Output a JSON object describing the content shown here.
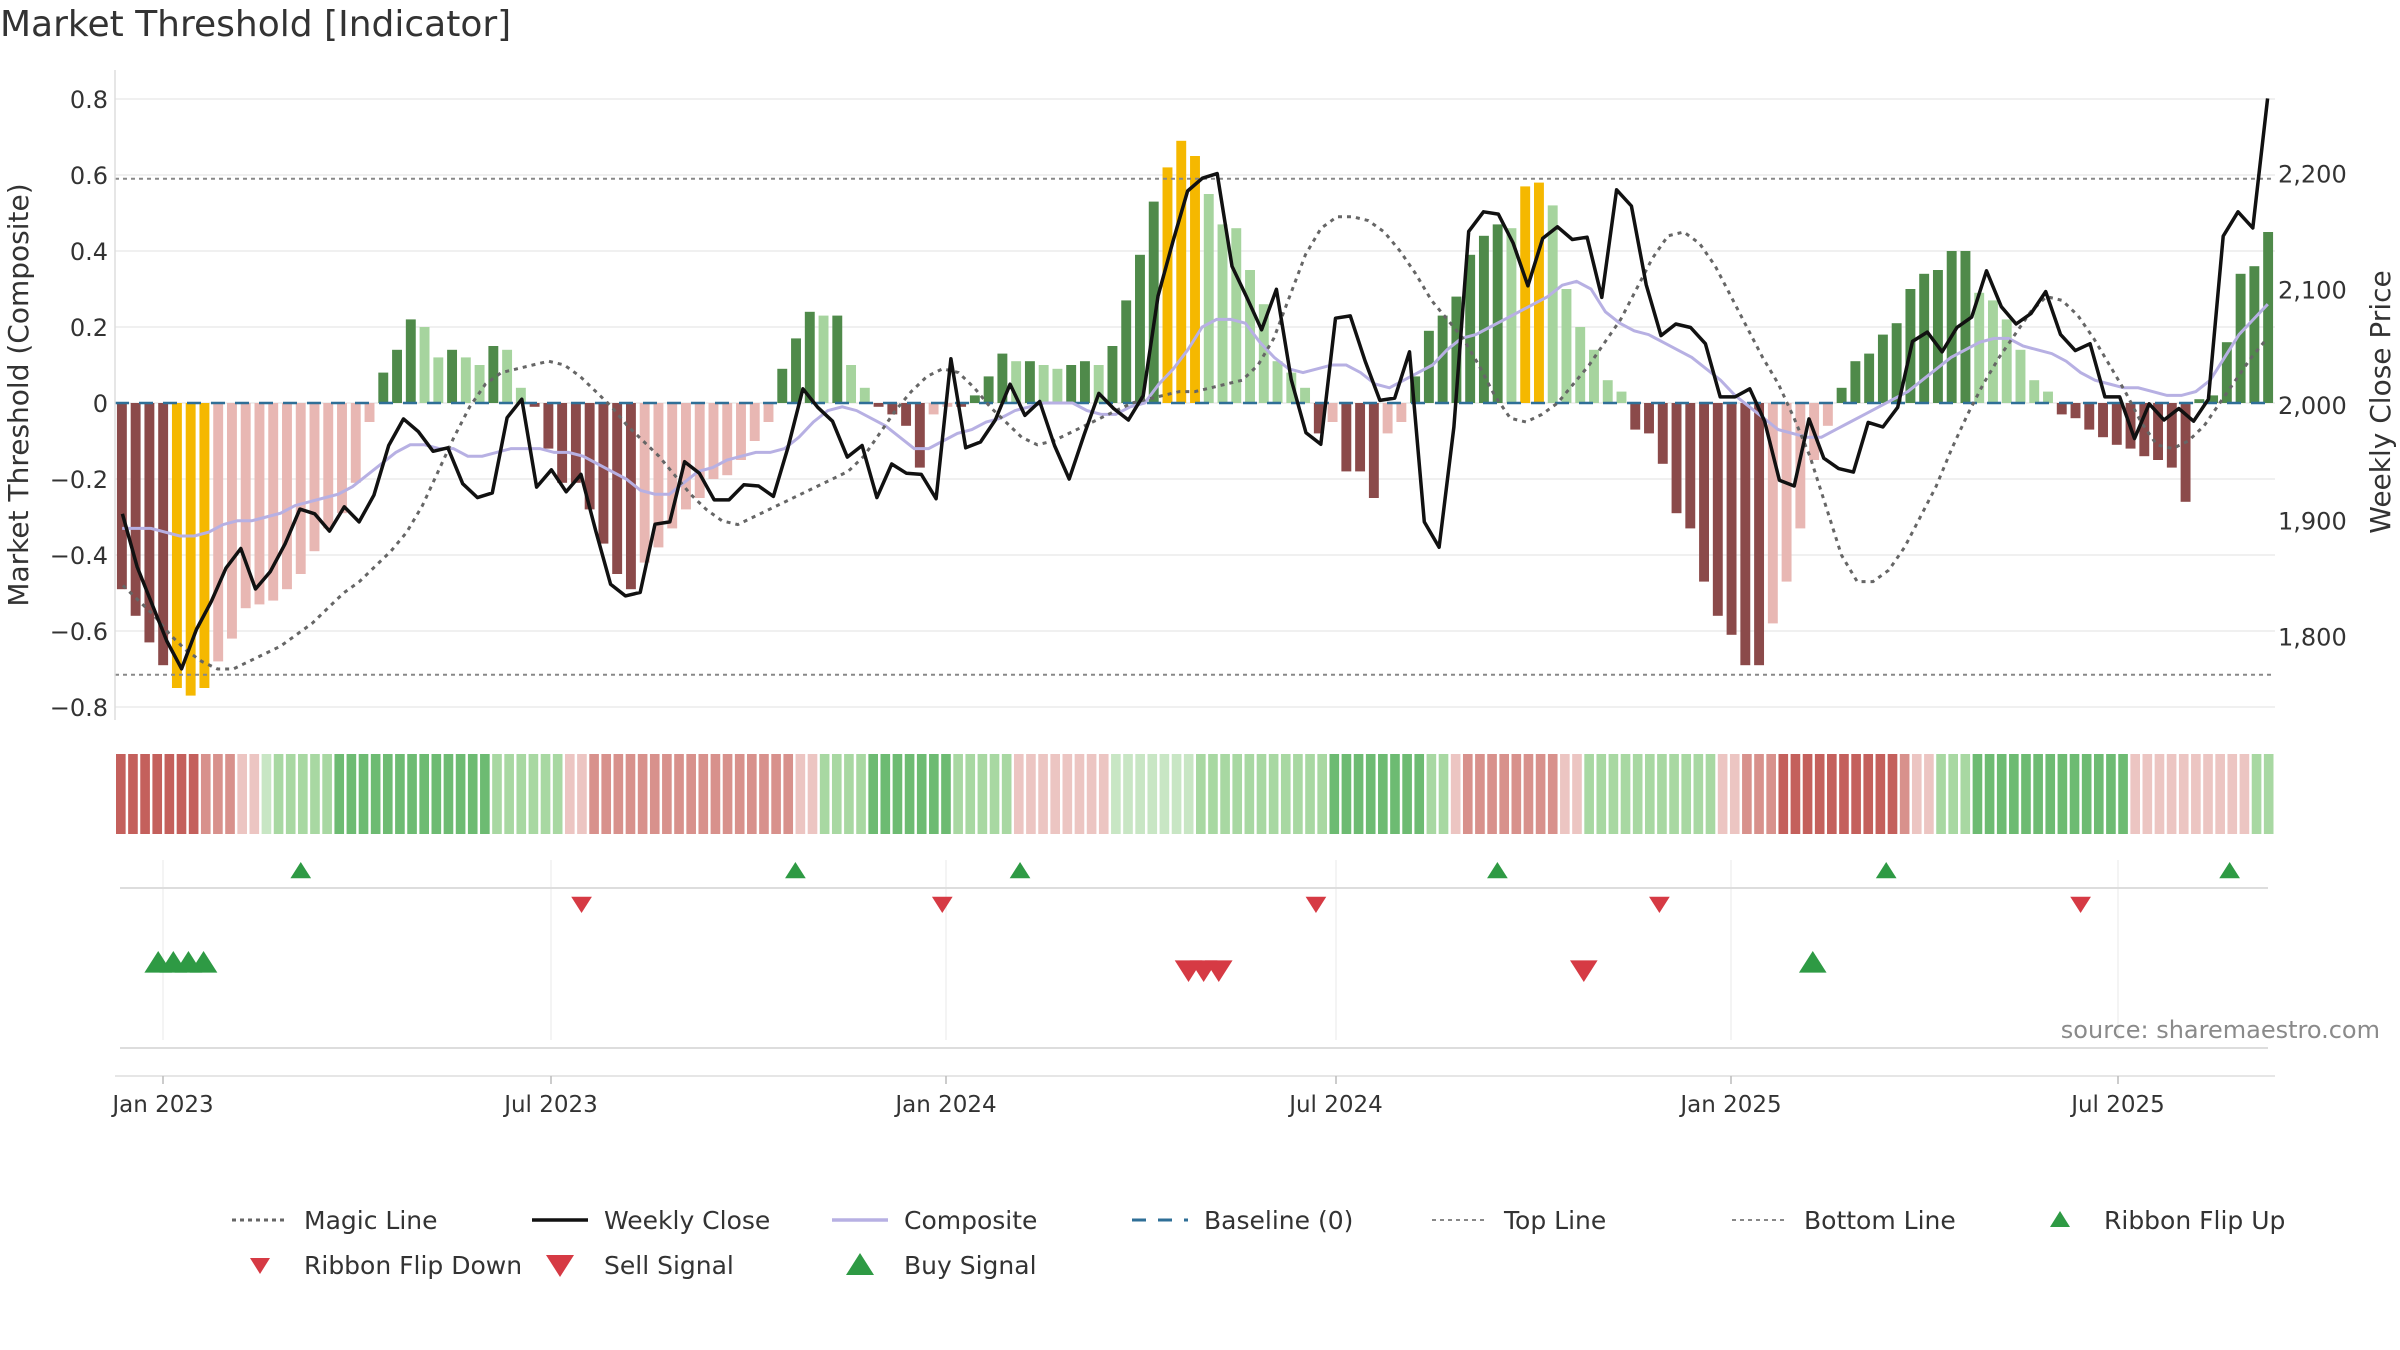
{
  "title": "Market Threshold [Indicator]",
  "source": "source: sharemaestro.com",
  "colors": {
    "deep_red": "#8b4a4a",
    "light_red": "#e8b7b3",
    "gold": "#f5b800",
    "deep_green": "#4f8a4a",
    "light_green": "#a6d49e",
    "close": "#111111",
    "composite": "#b7b0e3",
    "baseline": "#2f6f97",
    "magic": "#666666",
    "sell": "#d63a44",
    "buy": "#2e9a44"
  },
  "chart_data": {
    "type": "bar",
    "title": "Market Threshold [Indicator]",
    "ylabel": "Market Threshold (Composite)",
    "y2label": "Weekly Close Price",
    "ylim": [
      -0.84,
      0.8
    ],
    "y2lim": [
      1735,
      2265
    ],
    "yticks": [
      "0.8",
      "0.6",
      "0.4",
      "0.2",
      "0",
      "−0.2",
      "−0.4",
      "−0.6",
      "−0.8"
    ],
    "y2ticks": [
      "2,200",
      "2,100",
      "2,000",
      "1,900",
      "1,800"
    ],
    "xticks": [
      "Jan 2023",
      "Jul 2023",
      "Jan 2024",
      "Jul 2024",
      "Jan 2025",
      "Jul 2025"
    ],
    "top_line": 0.59,
    "bottom_line": -0.715,
    "composite_bars": [
      -0.49,
      -0.56,
      -0.63,
      -0.69,
      -0.75,
      -0.77,
      -0.75,
      -0.68,
      -0.62,
      -0.54,
      -0.53,
      -0.52,
      -0.49,
      -0.45,
      -0.39,
      -0.33,
      -0.29,
      -0.21,
      -0.05,
      0.08,
      0.14,
      0.22,
      0.2,
      0.12,
      0.14,
      0.12,
      0.1,
      0.15,
      0.14,
      0.04,
      -0.01,
      -0.12,
      -0.21,
      -0.21,
      -0.28,
      -0.37,
      -0.45,
      -0.49,
      -0.42,
      -0.38,
      -0.33,
      -0.28,
      -0.25,
      -0.2,
      -0.19,
      -0.15,
      -0.1,
      -0.05,
      0.09,
      0.17,
      0.24,
      0.23,
      0.23,
      0.1,
      0.04,
      -0.01,
      -0.03,
      -0.06,
      -0.17,
      -0.03,
      -0.01,
      -0.01,
      0.02,
      0.07,
      0.13,
      0.11,
      0.11,
      0.1,
      0.09,
      0.1,
      0.11,
      0.1,
      0.15,
      0.27,
      0.39,
      0.53,
      0.62,
      0.69,
      0.65,
      0.55,
      0.47,
      0.46,
      0.35,
      0.26,
      0.11,
      0.08,
      0.04,
      -0.08,
      -0.05,
      -0.18,
      -0.18,
      -0.25,
      -0.08,
      -0.05,
      0.07,
      0.19,
      0.23,
      0.28,
      0.39,
      0.44,
      0.47,
      0.46,
      0.57,
      0.58,
      0.52,
      0.3,
      0.2,
      0.14,
      0.06,
      0.03,
      -0.07,
      -0.08,
      -0.16,
      -0.29,
      -0.33,
      -0.47,
      -0.56,
      -0.61,
      -0.69,
      -0.69,
      -0.58,
      -0.47,
      -0.33,
      -0.15,
      -0.06,
      0.04,
      0.11,
      0.13,
      0.18,
      0.21,
      0.3,
      0.34,
      0.35,
      0.4,
      0.4,
      0.29,
      0.27,
      0.22,
      0.14,
      0.06,
      0.03,
      -0.03,
      -0.04,
      -0.07,
      -0.09,
      -0.11,
      -0.12,
      -0.14,
      -0.15,
      -0.17,
      -0.26,
      0.01,
      0.02,
      0.16,
      0.34,
      0.36,
      0.45
    ],
    "weekly_close": [
      1906,
      1860,
      1828,
      1796,
      1772,
      1806,
      1830,
      1859,
      1876,
      1841,
      1856,
      1880,
      1910,
      1906,
      1891,
      1912,
      1899,
      1922,
      1965,
      1988,
      1977,
      1960,
      1963,
      1932,
      1920,
      1924,
      1989,
      2005,
      1929,
      1944,
      1925,
      1940,
      1891,
      1845,
      1835,
      1838,
      1897,
      1899,
      1951,
      1941,
      1918,
      1918,
      1931,
      1930,
      1921,
      1964,
      2014,
      1998,
      1986,
      1955,
      1965,
      1920,
      1949,
      1941,
      1940,
      1919,
      2040,
      1963,
      1968,
      1987,
      2018,
      1991,
      2003,
      1965,
      1936,
      1974,
      2010,
      1997,
      1987,
      2008,
      2094,
      2141,
      2185,
      2196,
      2200,
      2120,
      2093,
      2065,
      2100,
      2022,
      1976,
      1966,
      2075,
      2077,
      2038,
      2004,
      2006,
      2046,
      1899,
      1877,
      1981,
      2150,
      2167,
      2165,
      2140,
      2103,
      2144,
      2154,
      2143,
      2145,
      2093,
      2186,
      2172,
      2104,
      2060,
      2070,
      2067,
      2053,
      2007,
      2007,
      2014,
      1986,
      1935,
      1930,
      1988,
      1954,
      1945,
      1942,
      1985,
      1981,
      1998,
      2055,
      2063,
      2046,
      2067,
      2076,
      2116,
      2085,
      2070,
      2079,
      2098,
      2061,
      2047,
      2053,
      2007,
      2007,
      1971,
      2001,
      1987,
      1997,
      1986,
      2005,
      2146,
      2167,
      2153,
      2265
    ],
    "composite_line": [
      -0.33,
      -0.33,
      -0.33,
      -0.34,
      -0.35,
      -0.35,
      -0.34,
      -0.32,
      -0.31,
      -0.31,
      -0.3,
      -0.29,
      -0.27,
      -0.26,
      -0.25,
      -0.24,
      -0.22,
      -0.19,
      -0.16,
      -0.13,
      -0.11,
      -0.11,
      -0.12,
      -0.12,
      -0.14,
      -0.14,
      -0.13,
      -0.12,
      -0.12,
      -0.12,
      -0.13,
      -0.13,
      -0.14,
      -0.16,
      -0.18,
      -0.2,
      -0.23,
      -0.24,
      -0.24,
      -0.21,
      -0.18,
      -0.17,
      -0.15,
      -0.14,
      -0.13,
      -0.13,
      -0.12,
      -0.09,
      -0.05,
      -0.02,
      -0.01,
      -0.02,
      -0.04,
      -0.06,
      -0.09,
      -0.12,
      -0.12,
      -0.1,
      -0.08,
      -0.07,
      -0.05,
      -0.04,
      -0.02,
      -0.01,
      0.0,
      0.0,
      0.0,
      -0.02,
      -0.03,
      -0.03,
      -0.01,
      0.0,
      0.05,
      0.09,
      0.14,
      0.2,
      0.22,
      0.22,
      0.21,
      0.16,
      0.12,
      0.09,
      0.08,
      0.09,
      0.1,
      0.1,
      0.08,
      0.05,
      0.04,
      0.06,
      0.08,
      0.1,
      0.14,
      0.17,
      0.18,
      0.2,
      0.22,
      0.24,
      0.26,
      0.28,
      0.31,
      0.32,
      0.3,
      0.24,
      0.21,
      0.19,
      0.18,
      0.16,
      0.14,
      0.12,
      0.09,
      0.06,
      0.02,
      -0.01,
      -0.04,
      -0.07,
      -0.08,
      -0.09,
      -0.09,
      -0.07,
      -0.05,
      -0.03,
      -0.01,
      0.01,
      0.03,
      0.06,
      0.09,
      0.12,
      0.14,
      0.16,
      0.17,
      0.17,
      0.15,
      0.14,
      0.13,
      0.11,
      0.08,
      0.06,
      0.05,
      0.04,
      0.04,
      0.03,
      0.02,
      0.02,
      0.03,
      0.06,
      0.12,
      0.18,
      0.22,
      0.26
    ],
    "magic_line": [
      -0.48,
      -0.52,
      -0.56,
      -0.61,
      -0.65,
      -0.68,
      -0.7,
      -0.7,
      -0.68,
      -0.66,
      -0.64,
      -0.61,
      -0.58,
      -0.54,
      -0.5,
      -0.47,
      -0.43,
      -0.39,
      -0.34,
      -0.27,
      -0.18,
      -0.09,
      -0.01,
      0.05,
      0.08,
      0.09,
      0.1,
      0.11,
      0.1,
      0.07,
      0.03,
      -0.01,
      -0.06,
      -0.1,
      -0.14,
      -0.19,
      -0.24,
      -0.28,
      -0.31,
      -0.32,
      -0.3,
      -0.28,
      -0.26,
      -0.24,
      -0.22,
      -0.2,
      -0.18,
      -0.14,
      -0.08,
      -0.02,
      0.03,
      0.07,
      0.09,
      0.08,
      0.04,
      -0.01,
      -0.05,
      -0.09,
      -0.11,
      -0.1,
      -0.08,
      -0.06,
      -0.04,
      -0.02,
      0.0,
      0.01,
      0.02,
      0.03,
      0.03,
      0.04,
      0.05,
      0.06,
      0.1,
      0.17,
      0.28,
      0.39,
      0.46,
      0.49,
      0.49,
      0.48,
      0.45,
      0.4,
      0.34,
      0.27,
      0.22,
      0.17,
      0.1,
      0.02,
      -0.04,
      -0.05,
      -0.03,
      0.0,
      0.05,
      0.1,
      0.16,
      0.22,
      0.3,
      0.38,
      0.44,
      0.45,
      0.42,
      0.36,
      0.28,
      0.2,
      0.12,
      0.05,
      -0.04,
      -0.14,
      -0.27,
      -0.4,
      -0.47,
      -0.47,
      -0.44,
      -0.38,
      -0.3,
      -0.22,
      -0.12,
      -0.03,
      0.05,
      0.12,
      0.18,
      0.24,
      0.28,
      0.27,
      0.23,
      0.17,
      0.1,
      0.03,
      -0.05,
      -0.11,
      -0.12,
      -0.1,
      -0.06,
      0.0,
      0.06,
      0.12,
      0.17
    ],
    "ribbon": [
      -3,
      -3,
      -3,
      -3,
      -3,
      -3,
      -3,
      -2,
      -2,
      -2,
      -1,
      -1,
      1,
      2,
      2,
      2,
      2,
      2,
      3,
      3,
      3,
      3,
      3,
      3,
      3,
      3,
      3,
      3,
      3,
      3,
      3,
      2,
      2,
      2,
      2,
      2,
      2,
      -1,
      -1,
      -2,
      -2,
      -2,
      -2,
      -2,
      -2,
      -2,
      -2,
      -2,
      -2,
      -2,
      -2,
      -2,
      -2,
      -2,
      -2,
      -2,
      -1,
      -1,
      2,
      2,
      2,
      2,
      3,
      3,
      3,
      3,
      3,
      3,
      3,
      2,
      2,
      2,
      2,
      2,
      -1,
      -1,
      -1,
      -1,
      -1,
      -1,
      -1,
      -1,
      1,
      1,
      1,
      1,
      1,
      1,
      1,
      2,
      2,
      2,
      2,
      2,
      2,
      2,
      2,
      2,
      2,
      2,
      3,
      3,
      3,
      3,
      3,
      3,
      3,
      3,
      2,
      2,
      -1,
      -2,
      -2,
      -2,
      -2,
      -2,
      -2,
      -2,
      -2,
      -1,
      -1,
      2,
      2,
      2,
      2,
      2,
      2,
      2,
      2,
      2,
      2,
      2,
      -1,
      -1,
      -2,
      -2,
      -2,
      -3,
      -3,
      -3,
      -3,
      -3,
      -3,
      -3,
      -3,
      -3,
      -3,
      -2,
      -1,
      -1,
      2,
      2,
      2,
      3,
      3,
      3,
      3,
      3,
      3,
      3,
      3,
      3,
      3,
      3,
      3,
      3,
      -1,
      -1,
      -1,
      -1,
      -1,
      -1,
      -1,
      -1,
      -1,
      -1,
      2,
      2
    ],
    "ribbon_flip_up_x": [
      0.086,
      0.315,
      0.419,
      0.64,
      0.82,
      0.979
    ],
    "ribbon_flip_down_x": [
      0.216,
      0.383,
      0.556,
      0.715,
      0.91
    ],
    "buy_signal_x": [
      0.02,
      0.027,
      0.034,
      0.041,
      0.786
    ],
    "sell_signal_x": [
      0.497,
      0.504,
      0.511,
      0.68
    ]
  },
  "legend": [
    {
      "label": "Magic Line",
      "kind": "dotted"
    },
    {
      "label": "Weekly Close",
      "kind": "solid"
    },
    {
      "label": "Composite",
      "kind": "composite"
    },
    {
      "label": "Baseline (0)",
      "kind": "dashed"
    },
    {
      "label": "Top Line",
      "kind": "thin-dashed"
    },
    {
      "label": "Bottom Line",
      "kind": "thin-dashed"
    },
    {
      "label": "Ribbon Flip Up",
      "kind": "tri-up"
    },
    {
      "label": "Ribbon Flip Down",
      "kind": "tri-down"
    },
    {
      "label": "Sell Signal",
      "kind": "sell"
    },
    {
      "label": "Buy Signal",
      "kind": "buy"
    }
  ]
}
